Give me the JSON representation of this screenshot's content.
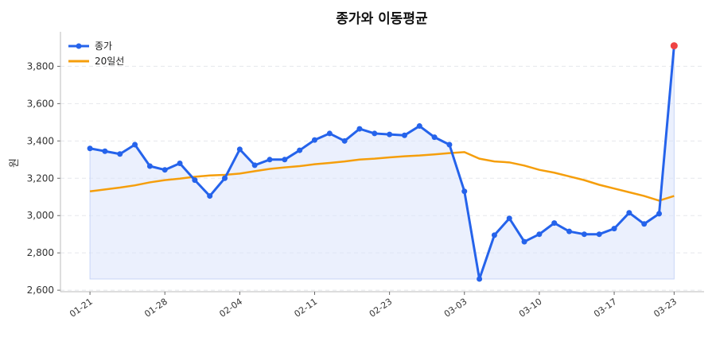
{
  "chart_data": {
    "type": "line",
    "title": "종가와 이동평균",
    "xlabel": "",
    "ylabel": "원",
    "ylim": [
      2592,
      3985
    ],
    "y_ticks": [
      2600,
      2800,
      3000,
      3200,
      3400,
      3600,
      3800
    ],
    "y_tick_labels": [
      "2,600",
      "2,800",
      "3,000",
      "3,200",
      "3,400",
      "3,600",
      "3,800"
    ],
    "x_ticks": [
      {
        "index": 0,
        "label": "01-21"
      },
      {
        "index": 5,
        "label": "01-28"
      },
      {
        "index": 10,
        "label": "02-04"
      },
      {
        "index": 15,
        "label": "02-11"
      },
      {
        "index": 20,
        "label": "02-23"
      },
      {
        "index": 25,
        "label": "03-03"
      },
      {
        "index": 30,
        "label": "03-10"
      },
      {
        "index": 35,
        "label": "03-17"
      },
      {
        "index": 39,
        "label": "03-23"
      }
    ],
    "grid": "horizontal dashed",
    "legend_position": "top-left",
    "series": [
      {
        "name": "종가",
        "color": "#2563eb",
        "markers": true,
        "fill_below": true,
        "last_point_color": "#ef4444",
        "values": [
          3360,
          3345,
          3330,
          3380,
          3265,
          3245,
          3280,
          3190,
          3105,
          3200,
          3355,
          3270,
          3300,
          3300,
          3350,
          3405,
          3440,
          3400,
          3465,
          3440,
          3435,
          3430,
          3480,
          3420,
          3380,
          3130,
          2660,
          2895,
          2985,
          2860,
          2900,
          2960,
          2915,
          2900,
          2900,
          2930,
          3015,
          2955,
          3010,
          3910
        ]
      },
      {
        "name": "20일선",
        "color": "#f59e0b",
        "markers": false,
        "values": [
          3130,
          3140,
          3150,
          3162,
          3178,
          3190,
          3198,
          3208,
          3215,
          3218,
          3225,
          3238,
          3250,
          3258,
          3265,
          3275,
          3282,
          3290,
          3300,
          3305,
          3312,
          3318,
          3322,
          3328,
          3335,
          3340,
          3305,
          3290,
          3285,
          3268,
          3245,
          3230,
          3210,
          3190,
          3165,
          3145,
          3125,
          3105,
          3080,
          3105
        ]
      }
    ]
  }
}
